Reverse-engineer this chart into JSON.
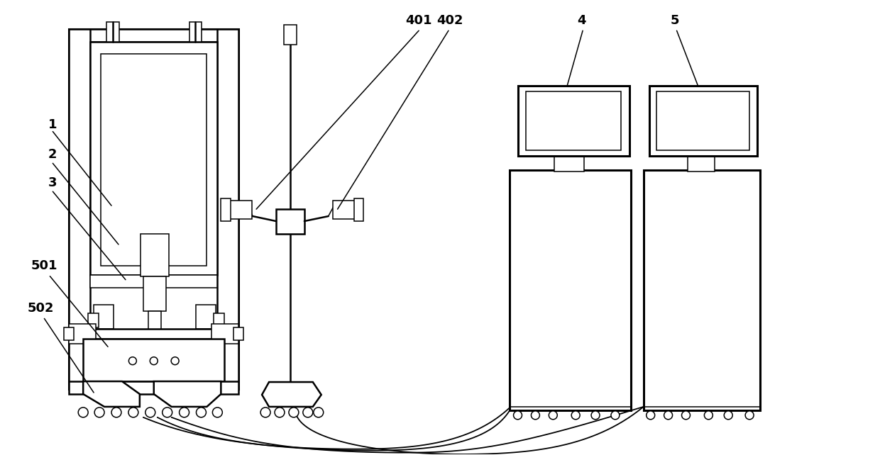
{
  "bg_color": "#ffffff",
  "line_color": "#000000",
  "lw": 1.8,
  "lw_thin": 1.1,
  "lw_thick": 2.2,
  "fig_width": 12.4,
  "fig_height": 6.42,
  "label_fontsize": 13,
  "label_fontweight": "bold"
}
